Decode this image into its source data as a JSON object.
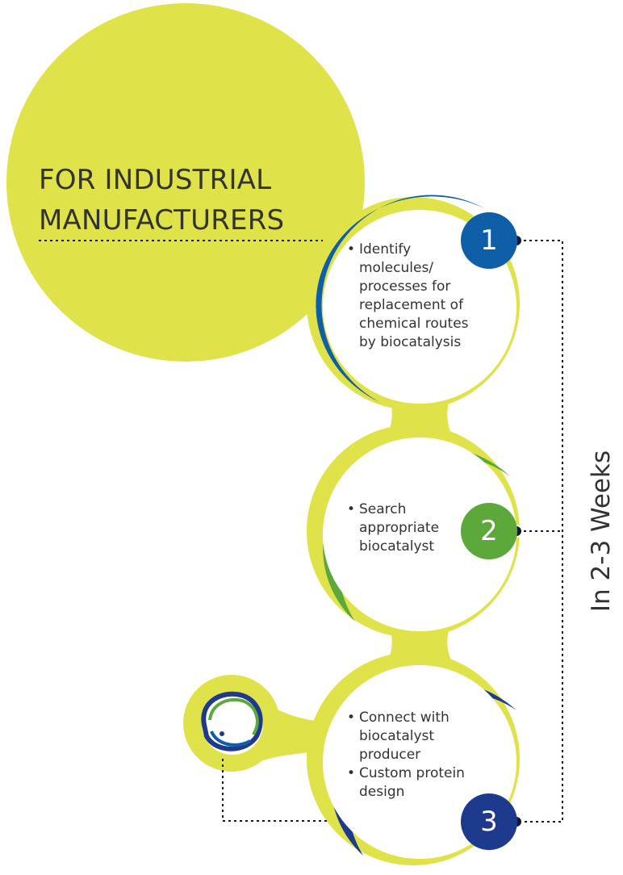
{
  "title": {
    "line1": "FOR INDUSTRIAL",
    "line2": "MANUFACTURERS"
  },
  "steps": [
    {
      "number": "1",
      "bullets": [
        "Identify molecules/ processes for replacement of chemical routes by biocatalysis"
      ],
      "color": "#0E5EA8"
    },
    {
      "number": "2",
      "bullets": [
        "Search appropriate biocatalyst"
      ],
      "color": "#5CA83A"
    },
    {
      "number": "3",
      "bullets": [
        "Connect with biocatalyst producer",
        "Custom protein design"
      ],
      "color": "#1E3A8C"
    }
  ],
  "timeline_label": "In 2-3 Weeks",
  "colors": {
    "lime": "#E0E24A",
    "connector_dot": "#111538",
    "text": "#333333"
  },
  "icons": [
    "protein-molecule-icon"
  ]
}
